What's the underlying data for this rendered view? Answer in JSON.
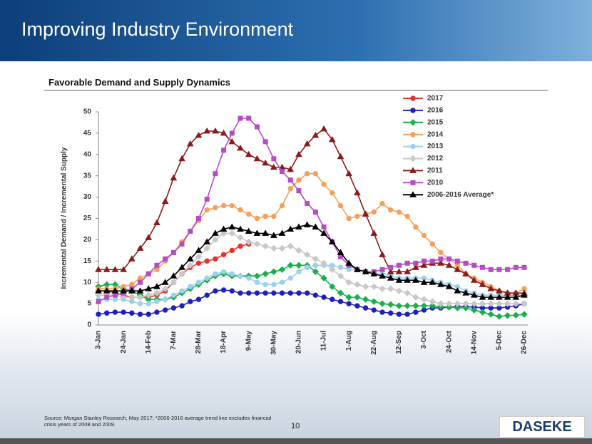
{
  "slide": {
    "title": "Improving Industry Environment",
    "subtitle": "Favorable Demand and Supply Dynamics",
    "source": "Source: Morgan Stanley Research, May 2017; *2006-2016 average trend line excludes financial crisis years of 2008 and 2009.",
    "page_number": 10,
    "logo": "DASEKE"
  },
  "chart_data": {
    "type": "line",
    "y_label": "Incremental Demand / Incremental Supply",
    "categories": [
      "3-Jan",
      null,
      null,
      "24-Jan",
      null,
      null,
      "14-Feb",
      null,
      null,
      "7-Mar",
      null,
      null,
      "28-Mar",
      null,
      null,
      "18-Apr",
      null,
      null,
      "9-May",
      null,
      null,
      "30-May",
      null,
      null,
      "20-Jun",
      null,
      null,
      "11-Jul",
      null,
      null,
      "1-Aug",
      null,
      null,
      "22-Aug",
      null,
      null,
      "12-Sep",
      null,
      null,
      "3-Oct",
      null,
      null,
      "24-Oct",
      null,
      null,
      "14-Nov",
      null,
      null,
      "5-Dec",
      null,
      null,
      "26-Dec"
    ],
    "ylim": [
      0,
      50
    ],
    "yticks": [
      0,
      5,
      10,
      15,
      20,
      25,
      30,
      35,
      40,
      45,
      50
    ],
    "grid": false,
    "legend": "upper right",
    "series": [
      {
        "name": "2017",
        "color": "#e8302b",
        "marker": "circle",
        "values": [
          8,
          8,
          7.5,
          7,
          6.5,
          6.5,
          6.5,
          7,
          8,
          10,
          12,
          13.5,
          14.5,
          15,
          15.5,
          16.5,
          17.5,
          18.5,
          19,
          null,
          null,
          null,
          null,
          null,
          null,
          null,
          null,
          null,
          null,
          null,
          null,
          null,
          null,
          null,
          null,
          null,
          null,
          null,
          null,
          null,
          null,
          null,
          null,
          null,
          null,
          null,
          null,
          null,
          null,
          null,
          null,
          null
        ]
      },
      {
        "name": "2016",
        "color": "#1f1fbf",
        "marker": "circle",
        "values": [
          2.5,
          2.8,
          3,
          3,
          2.8,
          2.5,
          2.5,
          3,
          3.5,
          4,
          4.5,
          5.5,
          6,
          7,
          8,
          8.2,
          8,
          7.5,
          7.5,
          7.5,
          7.5,
          7.5,
          7.5,
          7.5,
          7.5,
          7.5,
          7,
          6.5,
          6,
          5.5,
          5,
          4.5,
          4,
          3.5,
          3,
          2.8,
          2.5,
          2.5,
          3,
          3.5,
          4,
          4,
          4.2,
          4.3,
          4.3,
          4.2,
          4,
          4,
          4,
          4.2,
          4.5,
          5
        ]
      },
      {
        "name": "2015",
        "color": "#19b04a",
        "marker": "diamond",
        "values": [
          9,
          9.5,
          9.5,
          8.5,
          8,
          7,
          6,
          6,
          6,
          6.5,
          7.5,
          8.5,
          9.5,
          10.5,
          11.5,
          12,
          11.5,
          11.5,
          11.5,
          11.5,
          12,
          12.5,
          13,
          14,
          14,
          14,
          12.5,
          11,
          9,
          7.5,
          6.5,
          6.5,
          6,
          5.5,
          5,
          4.8,
          4.5,
          4.5,
          4.5,
          4.5,
          4.5,
          4.3,
          4.2,
          4,
          4,
          3.5,
          3,
          2.5,
          2,
          2.2,
          2.3,
          2.5
        ]
      },
      {
        "name": "2014",
        "color": "#f4a05a",
        "marker": "circle",
        "values": [
          8.5,
          8.5,
          8.5,
          9,
          9.5,
          11,
          12,
          13,
          15,
          17,
          19.5,
          22,
          24.5,
          27,
          27.5,
          28,
          28,
          27,
          26,
          25,
          25.5,
          25.5,
          28,
          32,
          34,
          35.5,
          35.5,
          33,
          31,
          28,
          25,
          25.5,
          26,
          26.5,
          28.5,
          27,
          26.5,
          25.5,
          23,
          21,
          19,
          17,
          15.5,
          14,
          12,
          11,
          10,
          9,
          8,
          7.5,
          7.5,
          8.5
        ]
      },
      {
        "name": "2013",
        "color": "#9dd0f0",
        "marker": "circle",
        "values": [
          6,
          6,
          6,
          6,
          5.5,
          5,
          5,
          5.5,
          6,
          7,
          8,
          9,
          10,
          11,
          12,
          12.5,
          12,
          11.5,
          11,
          10,
          9.5,
          9.5,
          10,
          11,
          12.5,
          13.5,
          14,
          14,
          14,
          13.5,
          13,
          13,
          12.5,
          12,
          12,
          11.5,
          11,
          11,
          11,
          11,
          10.5,
          10,
          9.5,
          9,
          8,
          7.5,
          7,
          7,
          7,
          7,
          7,
          7
        ]
      },
      {
        "name": "2012",
        "color": "#c8c8c8",
        "marker": "diamond",
        "values": [
          7,
          7,
          7,
          6.5,
          6.5,
          6.5,
          7,
          7.5,
          8.5,
          10,
          12,
          14,
          16,
          18,
          20,
          21.5,
          21.5,
          20.5,
          19.5,
          19,
          18.5,
          18,
          18,
          18.5,
          17.5,
          16.5,
          15.5,
          14.5,
          13,
          11.5,
          10,
          9.5,
          9,
          9,
          8.5,
          8.5,
          8,
          7.5,
          6.5,
          6,
          5.5,
          5,
          5,
          5,
          5,
          5,
          5,
          5,
          5,
          5,
          5,
          5
        ]
      },
      {
        "name": "2011",
        "color": "#8b1a1a",
        "marker": "triangle",
        "values": [
          13,
          13,
          13,
          13,
          15.5,
          18,
          20.5,
          24,
          29,
          34.5,
          39,
          42.5,
          44.5,
          45.5,
          45.5,
          45,
          43,
          41.5,
          40,
          39,
          38,
          37,
          37,
          36.5,
          40,
          42.5,
          44.5,
          46,
          43.5,
          39.5,
          35.5,
          31,
          26,
          21.5,
          16.5,
          12.5,
          12.5,
          12.5,
          13.5,
          14,
          14.5,
          14.5,
          14,
          13,
          12,
          10.5,
          9.5,
          8.5,
          8,
          7.5,
          7.5,
          7.5
        ]
      },
      {
        "name": "2010",
        "color": "#b44cc4",
        "marker": "square",
        "values": [
          5.5,
          6.5,
          7,
          7.5,
          8.5,
          10,
          12,
          14,
          15.5,
          17,
          19,
          22,
          25,
          29.5,
          35.5,
          41,
          45,
          48.5,
          48.5,
          46.5,
          43,
          39,
          36,
          34,
          31.5,
          28.5,
          26.5,
          23,
          19.5,
          16,
          14,
          13,
          12.5,
          12.5,
          13,
          13.5,
          14,
          14.5,
          14.5,
          15,
          15,
          15.5,
          15.5,
          15,
          14.5,
          14,
          13.5,
          13,
          13,
          13,
          13.5,
          13.5
        ]
      },
      {
        "name": "2006-2016 Average*",
        "color": "#000000",
        "marker": "triangle",
        "values": [
          8,
          8,
          8,
          8,
          8,
          8,
          8.5,
          9,
          10,
          11.5,
          13.5,
          15.5,
          17.5,
          19.5,
          21.5,
          22.5,
          23,
          22.5,
          22,
          21.5,
          21.5,
          21,
          21.5,
          22.5,
          23,
          23.5,
          23,
          21.5,
          19.5,
          17,
          14.5,
          13,
          12.5,
          12,
          11.5,
          11,
          10.5,
          10.5,
          10.5,
          10,
          10,
          9.5,
          9,
          8,
          7.5,
          7,
          6.5,
          6.5,
          6.5,
          6.5,
          6.5,
          7
        ]
      }
    ]
  }
}
